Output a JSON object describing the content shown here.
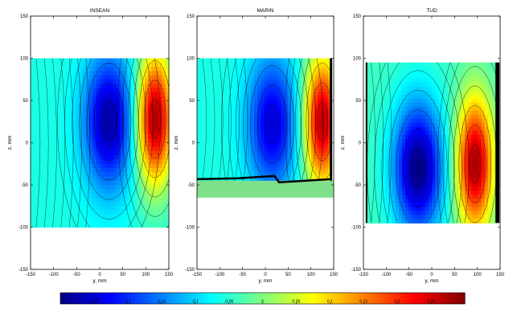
{
  "figure": {
    "background": "#ffffff"
  },
  "chart_data": {
    "type": "heatmap",
    "colorbar": {
      "range": [
        -0.3,
        0.3
      ],
      "ticks": [
        -0.25,
        -0.2,
        -0.15,
        -0.1,
        -0.05,
        0,
        0.05,
        0.1,
        0.15,
        0.2,
        0.25
      ],
      "colormap": "jet"
    },
    "panels": [
      {
        "title": "INSEAN",
        "xlabel": "y, mm",
        "ylabel": "z, mm",
        "xlim": [
          -150,
          150
        ],
        "ylim": [
          -150,
          150
        ],
        "xticks": [
          -150,
          -100,
          -50,
          0,
          50,
          100,
          150
        ],
        "yticks": [
          -150,
          -100,
          -50,
          0,
          50,
          100,
          150
        ],
        "field_y_range": [
          -150,
          150
        ],
        "field_z_range": [
          -100,
          100
        ],
        "features": [
          {
            "kind": "min",
            "y": 20,
            "z": 25,
            "value": -0.28
          },
          {
            "kind": "max",
            "y": 120,
            "z": 28,
            "value": 0.28
          }
        ],
        "background_level": -0.06
      },
      {
        "title": "MARIN",
        "xlabel": "y, mm",
        "ylabel": "z, mm",
        "xlim": [
          -150,
          150
        ],
        "ylim": [
          -150,
          150
        ],
        "xticks": [
          -150,
          -100,
          -50,
          0,
          50,
          100,
          150
        ],
        "yticks": [
          -150,
          -100,
          -50,
          0,
          50,
          100,
          150
        ],
        "field_y_range": [
          -150,
          145
        ],
        "field_z_range": [
          -45,
          100
        ],
        "bottom_band_z": [
          -65,
          -45
        ],
        "bottom_band_value": 0.0,
        "features": [
          {
            "kind": "min",
            "y": 15,
            "z": 22,
            "value": -0.25
          },
          {
            "kind": "max",
            "y": 125,
            "z": 25,
            "value": 0.27
          }
        ],
        "background_level": -0.06
      },
      {
        "title": "TUD",
        "xlabel": "y, mm",
        "ylabel": "z, mm",
        "xlim": [
          -150,
          150
        ],
        "ylim": [
          -150,
          150
        ],
        "xticks": [
          -150,
          -100,
          -50,
          0,
          50,
          100,
          150
        ],
        "yticks": [
          -150,
          -100,
          -50,
          0,
          50,
          100,
          150
        ],
        "field_y_range": [
          -145,
          145
        ],
        "field_z_range": [
          -95,
          95
        ],
        "features": [
          {
            "kind": "min",
            "y": -30,
            "z": -30,
            "value": -0.3
          },
          {
            "kind": "max",
            "y": 95,
            "z": -25,
            "value": 0.28
          }
        ],
        "background_level": -0.04
      }
    ]
  }
}
